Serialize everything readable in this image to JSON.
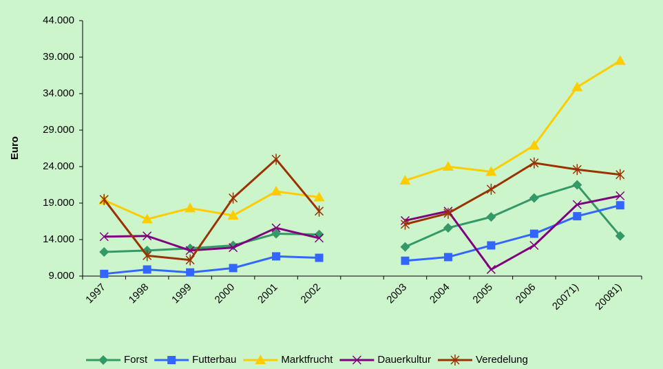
{
  "chart_data": {
    "type": "line",
    "y_label": "Euro",
    "categories": [
      "1997",
      "1998",
      "1999",
      "2000",
      "2001",
      "2002",
      null,
      "2003",
      "2004",
      "2005",
      "2006",
      "20071)",
      "20081)"
    ],
    "ylim": [
      9000,
      44000
    ],
    "yticks": [
      {
        "value": 9000,
        "label": "9.000"
      },
      {
        "value": 14000,
        "label": "14.000"
      },
      {
        "value": 19000,
        "label": "19.000"
      },
      {
        "value": 24000,
        "label": "24.000"
      },
      {
        "value": 29000,
        "label": "29.000"
      },
      {
        "value": 34000,
        "label": "34.000"
      },
      {
        "value": 39000,
        "label": "39.000"
      },
      {
        "value": 44000,
        "label": "44.000"
      }
    ],
    "series": [
      {
        "name": "Forst",
        "color": "#339966",
        "marker": "diamond",
        "values": [
          12300,
          12500,
          12800,
          13200,
          14800,
          14700,
          null,
          13000,
          15600,
          17100,
          19700,
          21500,
          14500
        ]
      },
      {
        "name": "Futterbau",
        "color": "#3366ff",
        "marker": "square",
        "values": [
          9300,
          9900,
          9500,
          10100,
          11700,
          11500,
          null,
          11100,
          11600,
          13200,
          14800,
          17200,
          18700
        ]
      },
      {
        "name": "Marktfrucht",
        "color": "#ffcc00",
        "marker": "triangle",
        "values": [
          19400,
          16800,
          18300,
          17300,
          20600,
          19800,
          null,
          22100,
          24000,
          23300,
          26900,
          34900,
          38500
        ]
      },
      {
        "name": "Dauerkultur",
        "color": "#800080",
        "marker": "x",
        "values": [
          14400,
          14500,
          12500,
          12900,
          15600,
          14200,
          null,
          16600,
          17900,
          9900,
          13200,
          18800,
          20000
        ]
      },
      {
        "name": "Veredelung",
        "color": "#993300",
        "marker": "star",
        "values": [
          19500,
          11800,
          11200,
          19700,
          25000,
          17900,
          null,
          16100,
          17600,
          20900,
          24500,
          23600,
          22900
        ]
      }
    ]
  }
}
